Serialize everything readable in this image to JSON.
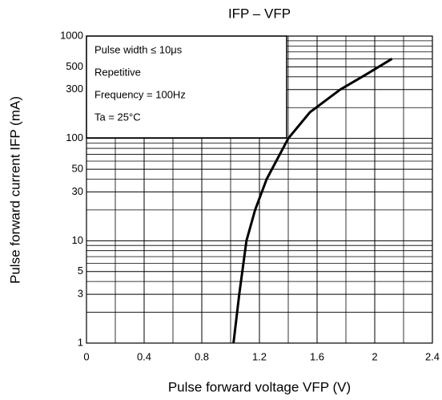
{
  "chart_data": {
    "type": "line",
    "title": "IFP – VFP",
    "xlabel": "Pulse forward voltage   VFP   (V)",
    "ylabel": "Pulse forward current   IFP   (mA)",
    "annotations": [
      "Pulse width ≤ 10μs",
      "Repetitive",
      "Frequency = 100Hz",
      "Ta = 25°C"
    ],
    "x": [
      1.02,
      1.06,
      1.11,
      1.17,
      1.25,
      1.4,
      1.55,
      1.76,
      1.95,
      2.12
    ],
    "series": [
      {
        "name": "IFP",
        "color": "#000000",
        "values": [
          1,
          3,
          10,
          20,
          40,
          100,
          180,
          300,
          430,
          600
        ]
      }
    ],
    "xlim": [
      0,
      2.4
    ],
    "xticks": [
      0,
      0.4,
      0.8,
      1.2,
      1.6,
      2.0,
      2.4
    ],
    "xgrid": [
      0.2,
      0.6,
      1.0,
      1.4,
      1.8,
      2.2
    ],
    "ylim": [
      1,
      1000
    ],
    "yscale": "log",
    "yticks": [
      1,
      3,
      5,
      10,
      30,
      50,
      100,
      300,
      500,
      1000
    ],
    "ygrid": [
      2,
      4,
      6,
      7,
      8,
      9,
      20,
      40,
      60,
      70,
      80,
      90,
      200,
      400,
      600,
      700,
      800,
      900
    ],
    "grid": true
  }
}
